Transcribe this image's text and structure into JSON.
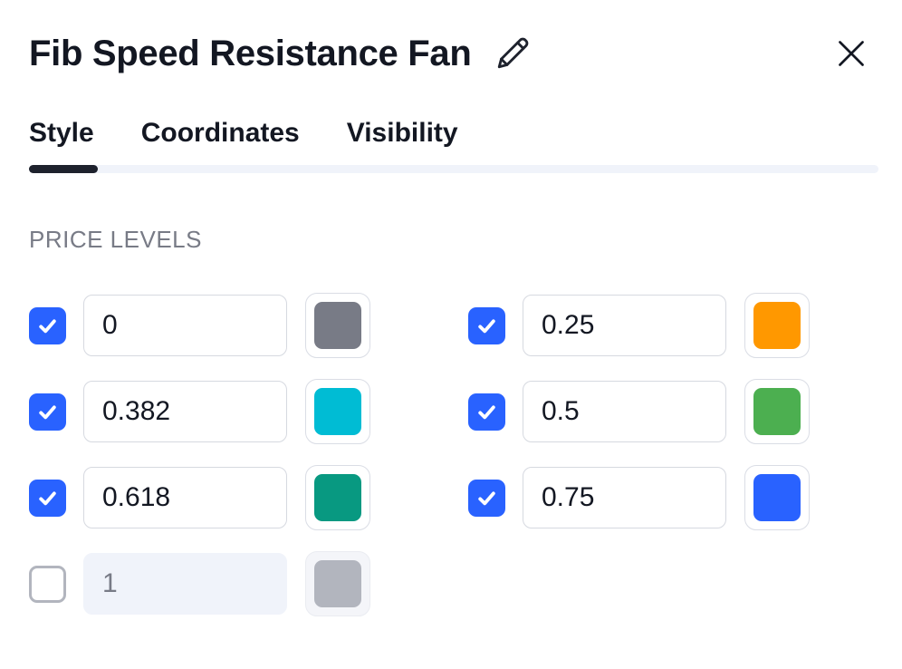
{
  "header": {
    "title": "Fib Speed Resistance Fan"
  },
  "tabs": [
    {
      "label": "Style",
      "active": true
    },
    {
      "label": "Coordinates",
      "active": false
    },
    {
      "label": "Visibility",
      "active": false
    }
  ],
  "price_levels": {
    "section_label": "PRICE LEVELS",
    "items": [
      {
        "checked": true,
        "value": "0",
        "color": "#787B86",
        "disabled": false
      },
      {
        "checked": true,
        "value": "0.25",
        "color": "#FF9800",
        "disabled": false
      },
      {
        "checked": true,
        "value": "0.382",
        "color": "#00BCD4",
        "disabled": false
      },
      {
        "checked": true,
        "value": "0.5",
        "color": "#4CAF50",
        "disabled": false
      },
      {
        "checked": true,
        "value": "0.618",
        "color": "#089981",
        "disabled": false
      },
      {
        "checked": true,
        "value": "0.75",
        "color": "#2962FF",
        "disabled": false
      },
      {
        "checked": false,
        "value": "1",
        "color": "#B2B5BE",
        "disabled": true
      }
    ]
  },
  "icons": {
    "edit": "pencil-icon",
    "close": "close-icon",
    "checkmark": "checkmark-icon"
  },
  "colors": {
    "accent": "#2962FF",
    "text_primary": "#131722",
    "text_secondary": "#787B86",
    "tab_indicator": "#1E222D",
    "tab_track": "#F0F3FA",
    "input_border": "#D6D9E0",
    "swatch_border": "#DADDE5",
    "disabled_bg": "#F0F3FA",
    "disabled_swatch": "#B2B5BE"
  }
}
